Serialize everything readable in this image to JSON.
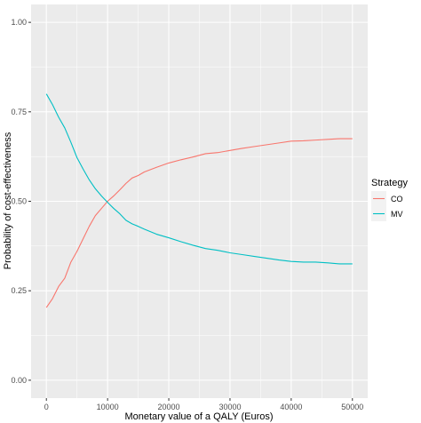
{
  "chart_data": {
    "type": "line",
    "xlabel": "Monetary value of a QALY (Euros)",
    "ylabel": "Probability of cost-effectiveness",
    "xlim": [
      -2500,
      52500
    ],
    "ylim": [
      -0.05,
      1.05
    ],
    "x_ticks": [
      0,
      10000,
      20000,
      30000,
      40000,
      50000
    ],
    "x_tick_labels": [
      "0",
      "10000",
      "20000",
      "30000",
      "40000",
      "50000"
    ],
    "y_ticks": [
      0.0,
      0.25,
      0.5,
      0.75,
      1.0
    ],
    "y_tick_labels": [
      "0.00",
      "0.25",
      "0.50",
      "0.75",
      "1.00"
    ],
    "grid": true,
    "legend": {
      "title": "Strategy",
      "position": "right"
    },
    "series": [
      {
        "name": "CO",
        "color": "#f8766d",
        "x": [
          0,
          1000,
          2000,
          3000,
          4000,
          5000,
          6000,
          7000,
          8000,
          9000,
          10000,
          11000,
          12000,
          13000,
          14000,
          15000,
          16000,
          18000,
          20000,
          22000,
          24000,
          26000,
          28000,
          30000,
          32000,
          34000,
          36000,
          38000,
          40000,
          42000,
          44000,
          46000,
          48000,
          50000
        ],
        "values": [
          0.203,
          0.228,
          0.262,
          0.285,
          0.33,
          0.36,
          0.395,
          0.43,
          0.46,
          0.48,
          0.5,
          0.515,
          0.532,
          0.55,
          0.565,
          0.572,
          0.582,
          0.595,
          0.607,
          0.616,
          0.624,
          0.633,
          0.636,
          0.642,
          0.648,
          0.653,
          0.658,
          0.663,
          0.668,
          0.669,
          0.671,
          0.673,
          0.675,
          0.675
        ]
      },
      {
        "name": "MV",
        "color": "#00bfc4",
        "x": [
          0,
          1000,
          2000,
          3000,
          4000,
          5000,
          6000,
          7000,
          8000,
          9000,
          10000,
          11000,
          12000,
          13000,
          14000,
          15000,
          16000,
          18000,
          20000,
          22000,
          24000,
          26000,
          28000,
          30000,
          32000,
          34000,
          36000,
          38000,
          40000,
          42000,
          44000,
          46000,
          48000,
          50000
        ],
        "values": [
          0.8,
          0.77,
          0.735,
          0.705,
          0.665,
          0.622,
          0.59,
          0.56,
          0.535,
          0.515,
          0.497,
          0.48,
          0.465,
          0.447,
          0.437,
          0.43,
          0.422,
          0.408,
          0.398,
          0.387,
          0.377,
          0.368,
          0.363,
          0.356,
          0.351,
          0.346,
          0.341,
          0.336,
          0.332,
          0.33,
          0.33,
          0.328,
          0.325,
          0.325
        ]
      }
    ]
  }
}
